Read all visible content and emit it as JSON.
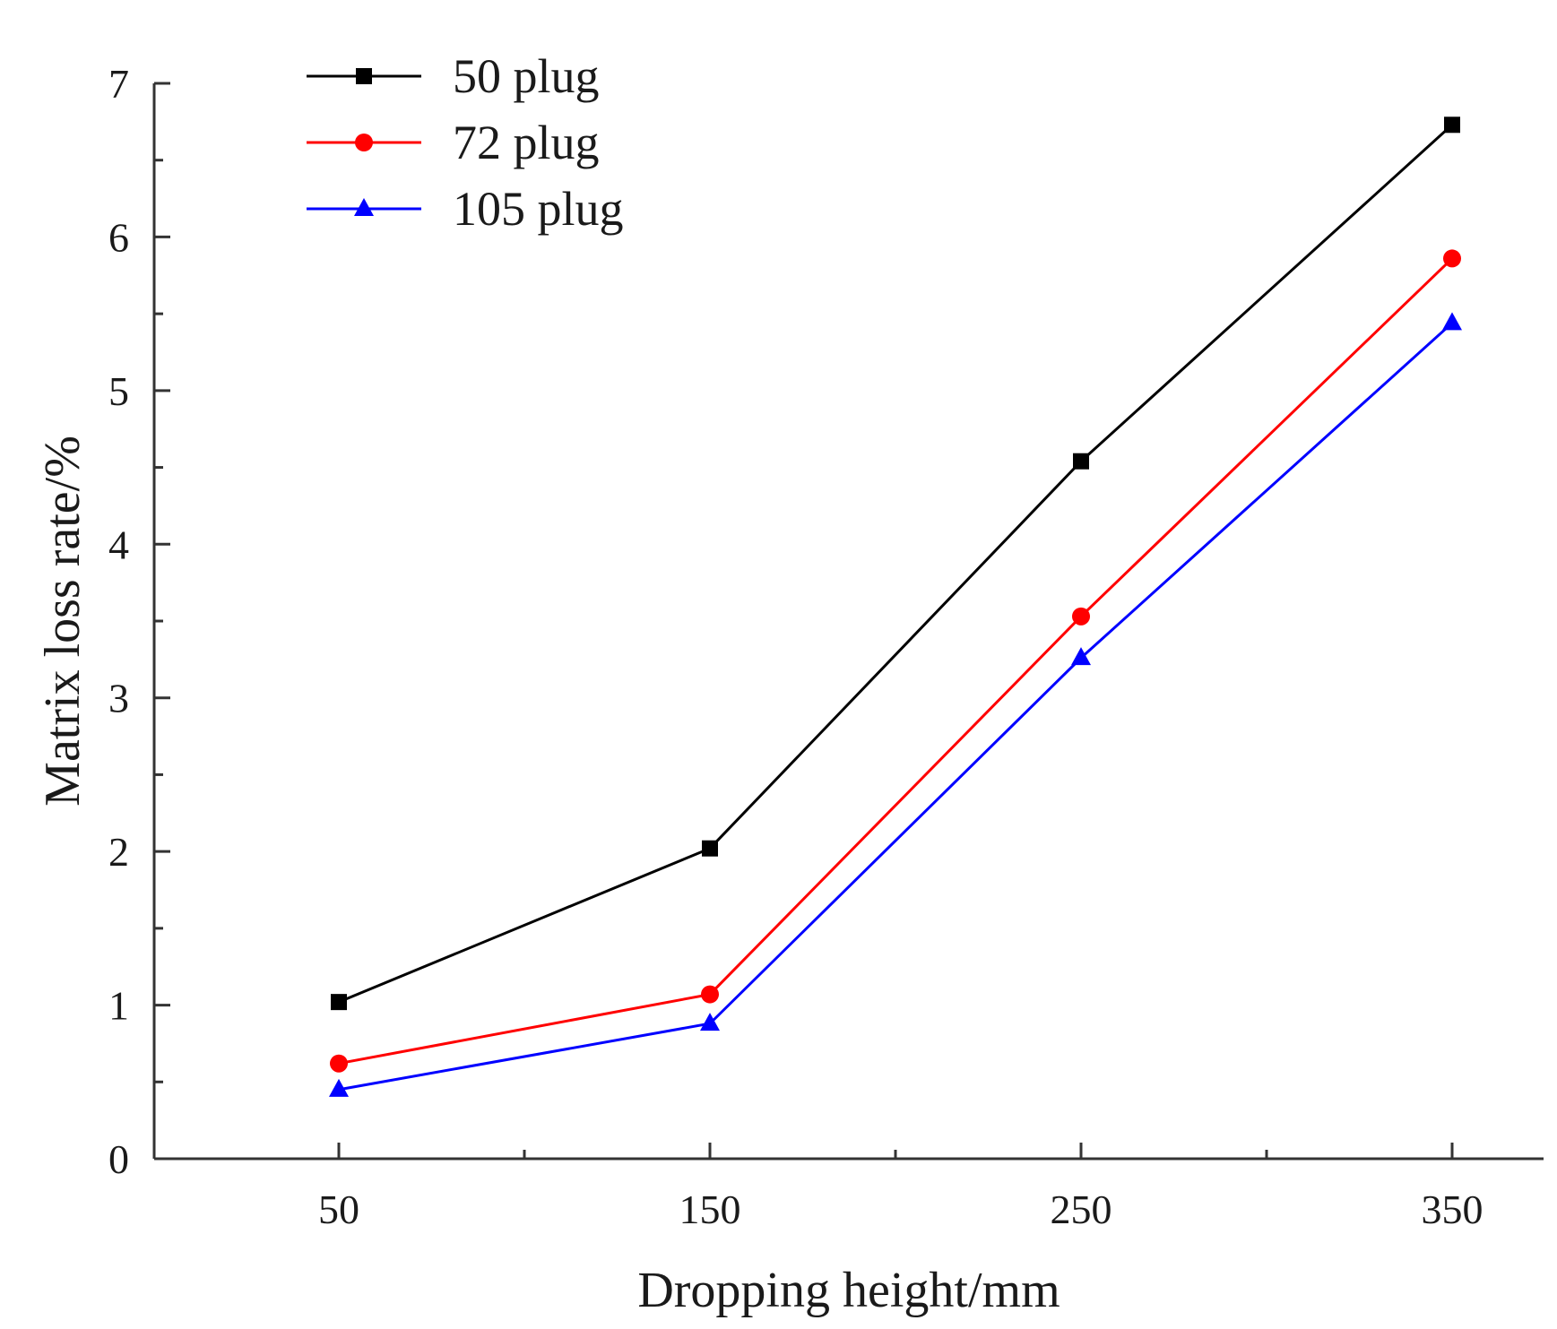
{
  "chart_data": {
    "type": "line",
    "title": "",
    "xlabel": "Dropping height/mm",
    "ylabel": "Matrix loss rate/%",
    "x": [
      50,
      150,
      250,
      350
    ],
    "x_tick_labels": [
      "50",
      "150",
      "250",
      "350"
    ],
    "xlim": [
      0,
      375
    ],
    "ylim": [
      0,
      7
    ],
    "y_ticks": [
      0,
      1,
      2,
      3,
      4,
      5,
      6,
      7
    ],
    "y_tick_labels": [
      "0",
      "1",
      "2",
      "3",
      "4",
      "5",
      "6",
      "7"
    ],
    "grid": false,
    "legend_position": "top-left",
    "series": [
      {
        "name": "50 plug",
        "color": "#000000",
        "marker": "square",
        "values": [
          1.02,
          2.02,
          4.54,
          6.73
        ]
      },
      {
        "name": "72 plug",
        "color": "#ff0000",
        "marker": "circle",
        "values": [
          0.62,
          1.07,
          3.53,
          5.86
        ]
      },
      {
        "name": "105 plug",
        "color": "#0000ff",
        "marker": "triangle",
        "values": [
          0.45,
          0.88,
          3.26,
          5.44
        ]
      }
    ]
  }
}
